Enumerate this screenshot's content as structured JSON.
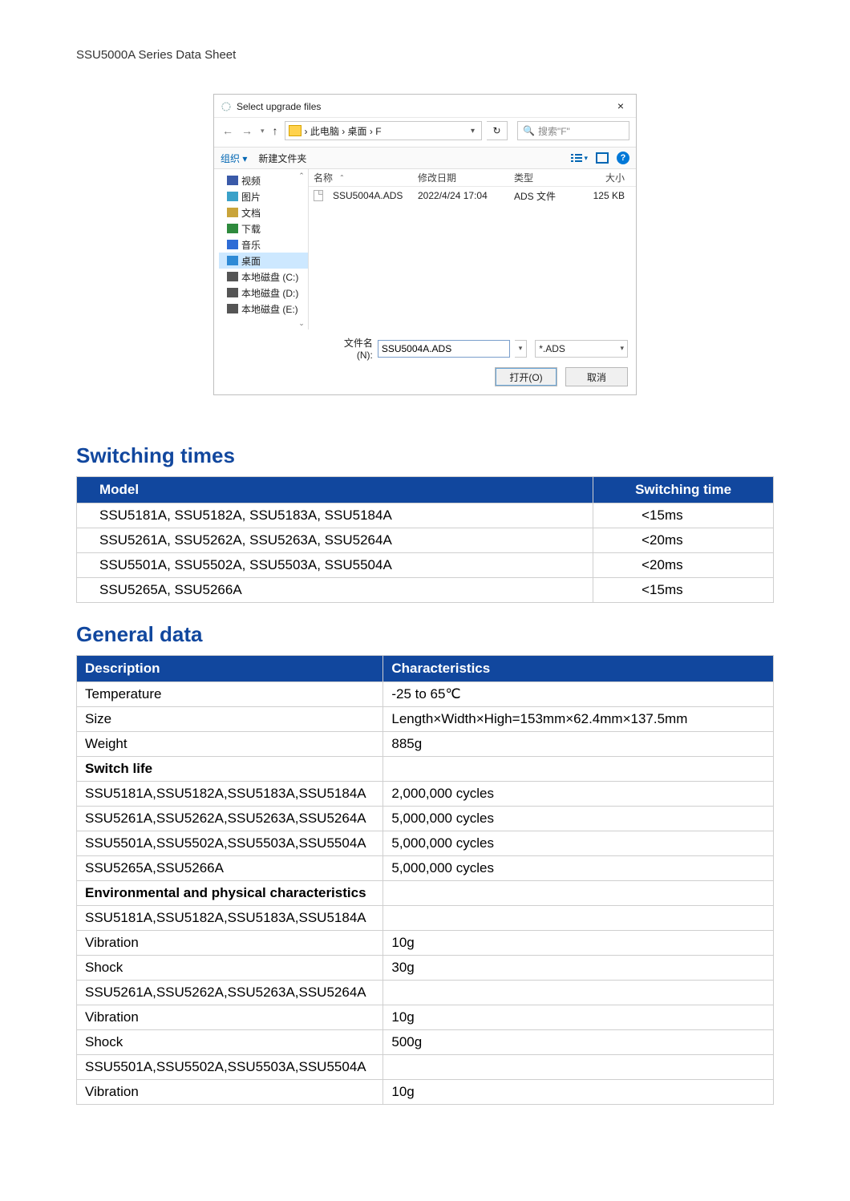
{
  "doc_header": "SSU5000A Series Data Sheet",
  "dialog": {
    "title": "Select upgrade files",
    "path": "› 此电脑 › 桌面 › F",
    "search_placeholder": "搜索\"F\"",
    "toolbar": {
      "organize": "组织 ▾",
      "new_folder": "新建文件夹"
    },
    "sidebar": {
      "items": [
        {
          "label": "视频",
          "color": "#3a5aa8"
        },
        {
          "label": "图片",
          "color": "#3aa1c9"
        },
        {
          "label": "文档",
          "color": "#c9a43a"
        },
        {
          "label": "下载",
          "color": "#2e8a3d"
        },
        {
          "label": "音乐",
          "color": "#2e6cd6"
        },
        {
          "label": "桌面",
          "color": "#2e8ad6",
          "selected": true
        },
        {
          "label": "本地磁盘 (C:)",
          "color": "#555"
        },
        {
          "label": "本地磁盘 (D:)",
          "color": "#555"
        },
        {
          "label": "本地磁盘 (E:)",
          "color": "#555"
        }
      ]
    },
    "columns": {
      "name": "名称",
      "date": "修改日期",
      "type": "类型",
      "size": "大小"
    },
    "files": [
      {
        "name": "SSU5004A.ADS",
        "date": "2022/4/24 17:04",
        "type": "ADS 文件",
        "size": "125 KB"
      }
    ],
    "filename_label": "文件名(N):",
    "filename_value": "SSU5004A.ADS",
    "filter": "*.ADS",
    "open_btn": "打开(O)",
    "cancel_btn": "取消"
  },
  "sections": {
    "switching": {
      "title": "Switching times",
      "header": {
        "model": "Model",
        "time": "Switching time"
      },
      "rows": [
        {
          "model": "SSU5181A, SSU5182A, SSU5183A, SSU5184A",
          "time": "<15ms"
        },
        {
          "model": "SSU5261A, SSU5262A, SSU5263A, SSU5264A",
          "time": "<20ms"
        },
        {
          "model": "SSU5501A, SSU5502A, SSU5503A, SSU5504A",
          "time": "<20ms"
        },
        {
          "model": "SSU5265A, SSU5266A",
          "time": "<15ms"
        }
      ]
    },
    "general": {
      "title": "General data",
      "header": {
        "desc": "Description",
        "char": "Characteristics"
      },
      "rows": [
        {
          "desc": "Temperature",
          "char": "-25 to 65℃"
        },
        {
          "desc": "Size",
          "char": "Length×Width×High=153mm×62.4mm×137.5mm"
        },
        {
          "desc": "Weight",
          "char": "885g"
        },
        {
          "desc": "Switch life",
          "char": "",
          "bold": true
        },
        {
          "desc": "SSU5181A,SSU5182A,SSU5183A,SSU5184A",
          "char": "2,000,000 cycles"
        },
        {
          "desc": "SSU5261A,SSU5262A,SSU5263A,SSU5264A",
          "char": "5,000,000 cycles"
        },
        {
          "desc": "SSU5501A,SSU5502A,SSU5503A,SSU5504A",
          "char": "5,000,000 cycles"
        },
        {
          "desc": "SSU5265A,SSU5266A",
          "char": "5,000,000 cycles"
        },
        {
          "desc": "Environmental and physical characteristics",
          "char": "",
          "bold": true
        },
        {
          "desc": "SSU5181A,SSU5182A,SSU5183A,SSU5184A",
          "char": ""
        },
        {
          "desc": "Vibration",
          "char": "10g"
        },
        {
          "desc": "Shock",
          "char": "30g"
        },
        {
          "desc": "SSU5261A,SSU5262A,SSU5263A,SSU5264A",
          "char": ""
        },
        {
          "desc": "Vibration",
          "char": "10g"
        },
        {
          "desc": "Shock",
          "char": "500g"
        },
        {
          "desc": "SSU5501A,SSU5502A,SSU5503A,SSU5504A",
          "char": ""
        },
        {
          "desc": "Vibration",
          "char": "10g"
        }
      ]
    }
  },
  "colors": {
    "brand_blue": "#11479e",
    "link_blue": "#0066b3",
    "border_gray": "#cfcfcf"
  }
}
